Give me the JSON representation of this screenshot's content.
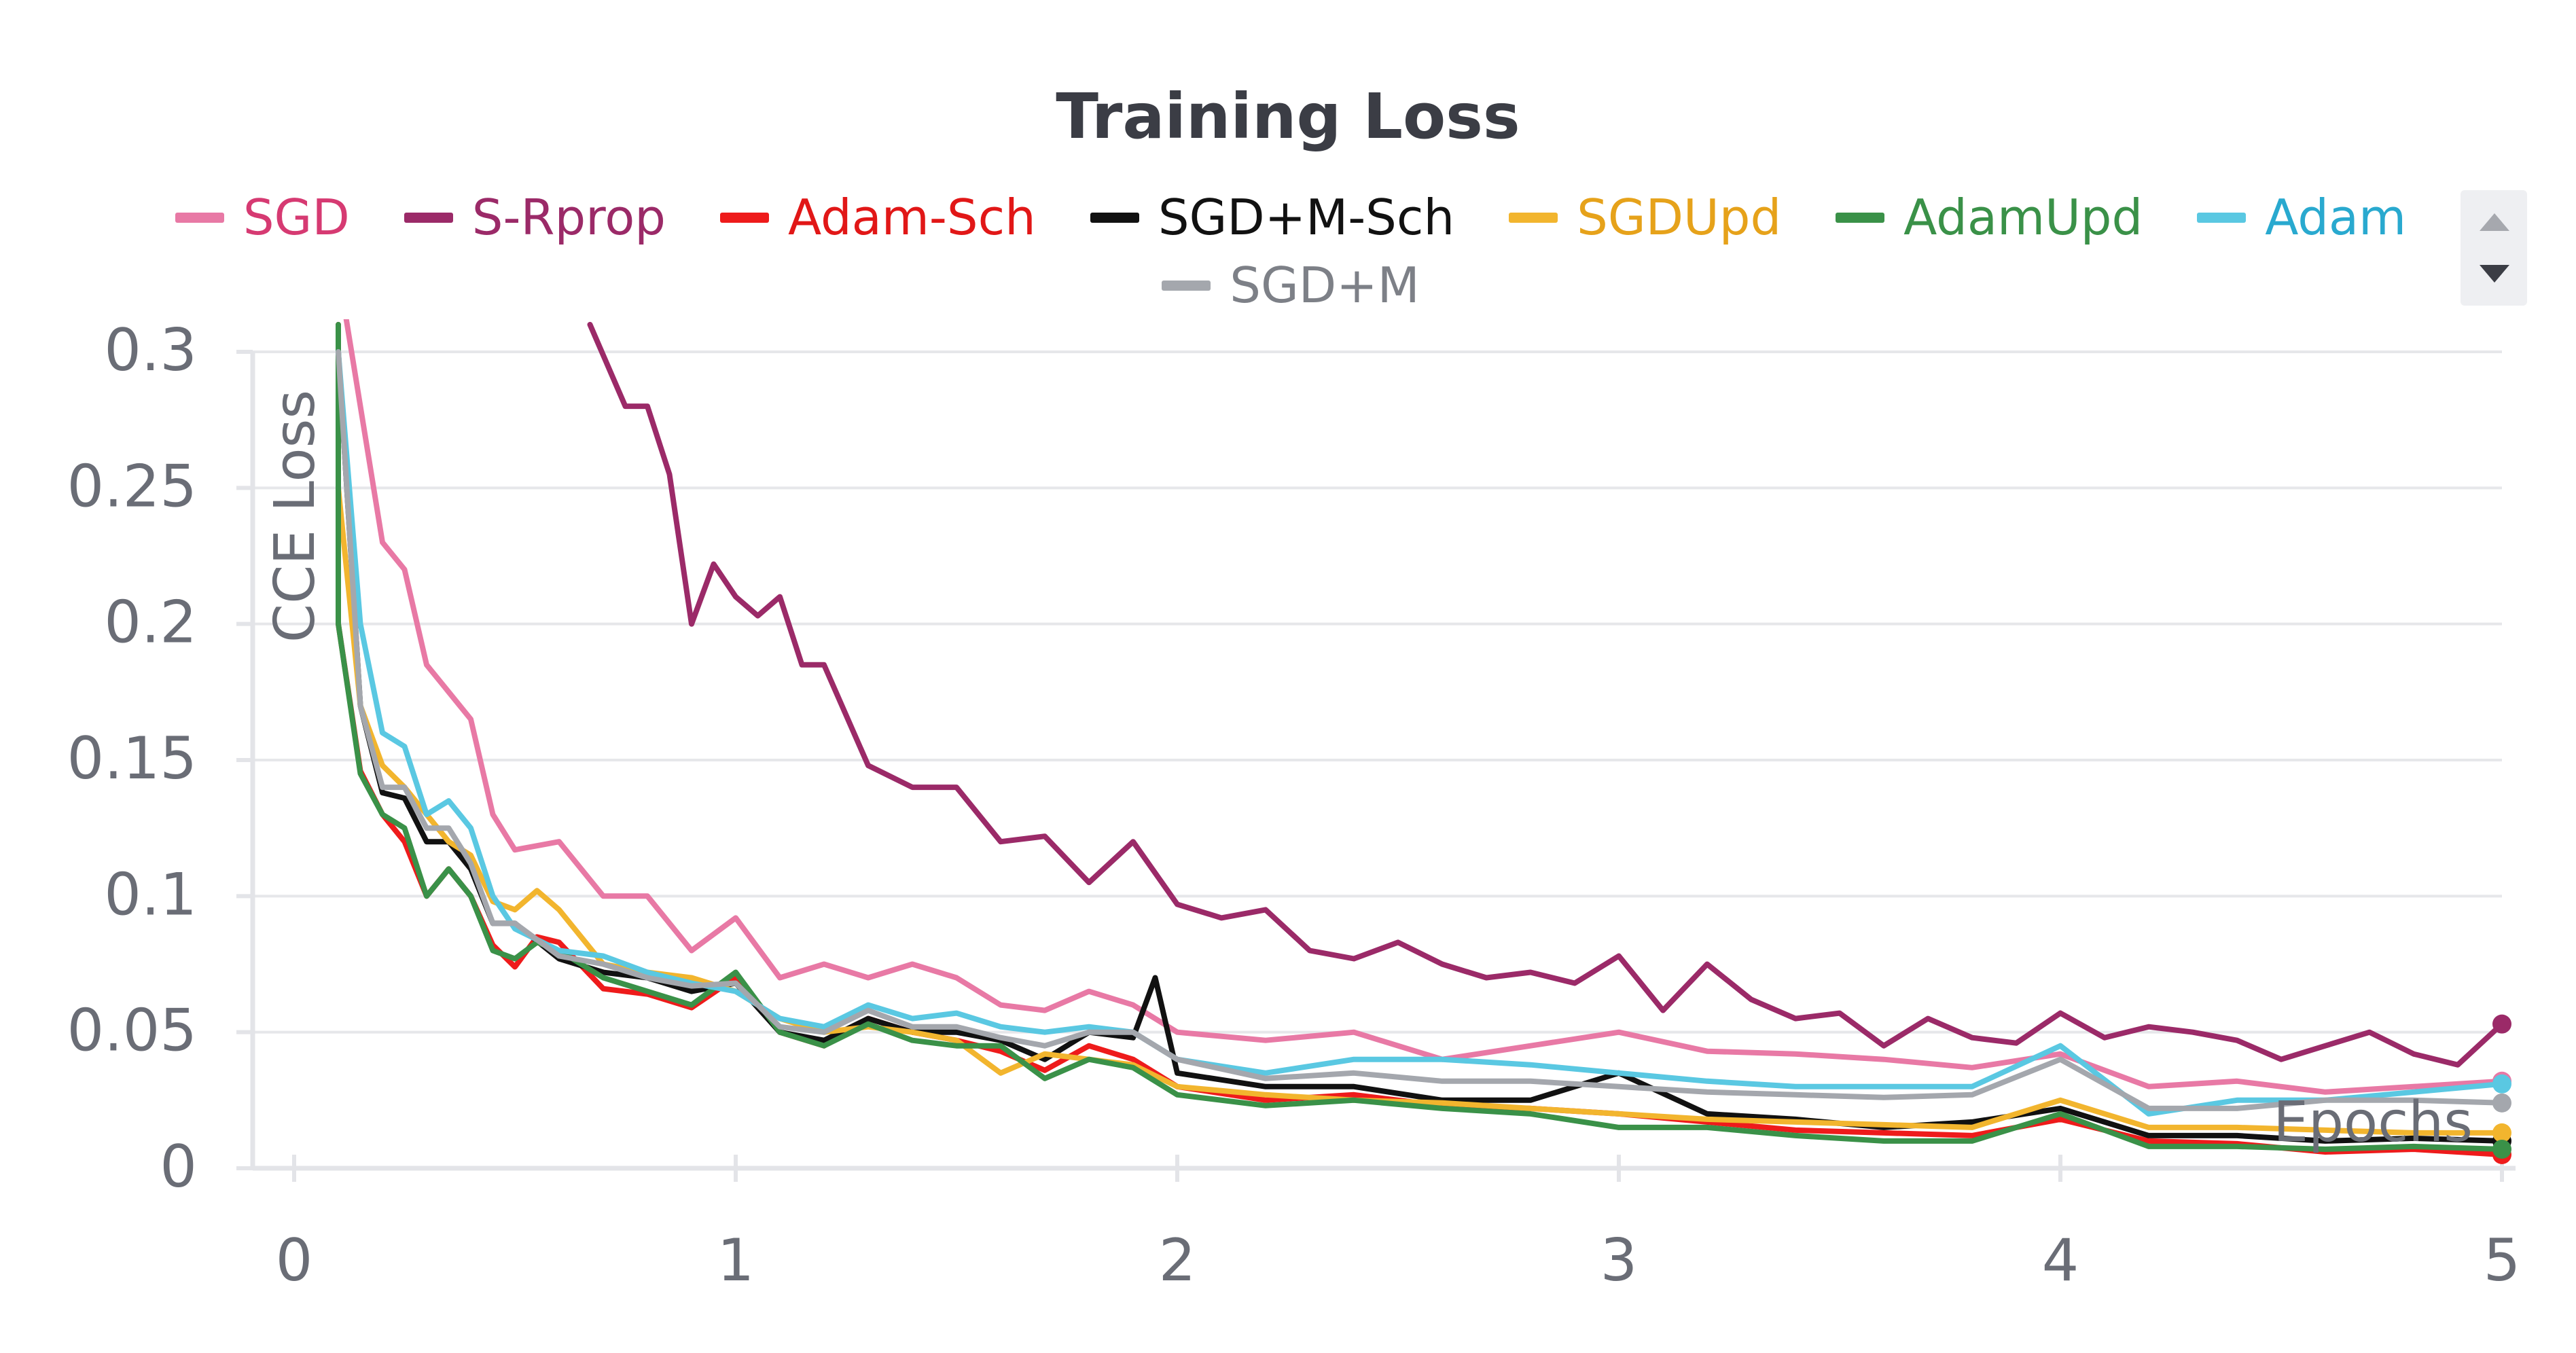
{
  "chart_data": {
    "type": "line",
    "title": "Training Loss",
    "xlabel": "Epochs",
    "ylabel": "CCE Loss",
    "xlim": [
      0,
      5
    ],
    "ylim": [
      0,
      0.3
    ],
    "xticks": [
      "0",
      "1",
      "2",
      "3",
      "4",
      "5"
    ],
    "yticks": [
      "0",
      "0.05",
      "0.1",
      "0.15",
      "0.2",
      "0.25",
      "0.3"
    ],
    "grid": true,
    "legend": "top-center",
    "series": [
      {
        "name": "SGD",
        "color": "#e879a5",
        "x": [
          0.1,
          0.2,
          0.25,
          0.3,
          0.35,
          0.4,
          0.45,
          0.5,
          0.6,
          0.7,
          0.8,
          0.9,
          1.0,
          1.1,
          1.2,
          1.3,
          1.4,
          1.5,
          1.6,
          1.7,
          1.8,
          1.9,
          2.0,
          2.2,
          2.4,
          2.6,
          2.8,
          3.0,
          3.2,
          3.4,
          3.6,
          3.8,
          4.0,
          4.2,
          4.4,
          4.6,
          4.8,
          5.0
        ],
        "y": [
          0.33,
          0.23,
          0.22,
          0.185,
          0.175,
          0.165,
          0.13,
          0.117,
          0.12,
          0.1,
          0.1,
          0.08,
          0.092,
          0.07,
          0.075,
          0.07,
          0.075,
          0.07,
          0.06,
          0.058,
          0.065,
          0.06,
          0.05,
          0.047,
          0.05,
          0.04,
          0.045,
          0.05,
          0.043,
          0.042,
          0.04,
          0.037,
          0.042,
          0.03,
          0.032,
          0.028,
          0.03,
          0.032
        ]
      },
      {
        "name": "S-Rprop",
        "color": "#9b2a68",
        "x": [
          0.67,
          0.75,
          0.8,
          0.85,
          0.9,
          0.95,
          1.0,
          1.05,
          1.1,
          1.15,
          1.2,
          1.3,
          1.4,
          1.5,
          1.6,
          1.7,
          1.8,
          1.9,
          2.0,
          2.1,
          2.2,
          2.3,
          2.4,
          2.5,
          2.6,
          2.7,
          2.8,
          2.9,
          3.0,
          3.1,
          3.2,
          3.3,
          3.4,
          3.5,
          3.6,
          3.7,
          3.8,
          3.9,
          4.0,
          4.1,
          4.2,
          4.3,
          4.4,
          4.5,
          4.6,
          4.7,
          4.8,
          4.9,
          5.0
        ],
        "y": [
          0.31,
          0.28,
          0.28,
          0.255,
          0.2,
          0.222,
          0.21,
          0.203,
          0.21,
          0.185,
          0.185,
          0.148,
          0.14,
          0.14,
          0.12,
          0.122,
          0.105,
          0.12,
          0.097,
          0.092,
          0.095,
          0.08,
          0.077,
          0.083,
          0.075,
          0.07,
          0.072,
          0.068,
          0.078,
          0.058,
          0.075,
          0.062,
          0.055,
          0.057,
          0.045,
          0.055,
          0.048,
          0.046,
          0.057,
          0.048,
          0.052,
          0.05,
          0.047,
          0.04,
          0.045,
          0.05,
          0.042,
          0.038,
          0.053
        ]
      },
      {
        "name": "Adam-Sch",
        "color": "#ee1b1b",
        "x": [
          0.1,
          0.1,
          0.15,
          0.2,
          0.25,
          0.3,
          0.35,
          0.4,
          0.45,
          0.5,
          0.55,
          0.6,
          0.7,
          0.8,
          0.9,
          1.0,
          1.1,
          1.2,
          1.3,
          1.4,
          1.5,
          1.6,
          1.7,
          1.8,
          1.9,
          2.0,
          2.2,
          2.4,
          2.6,
          2.8,
          3.0,
          3.2,
          3.4,
          3.6,
          3.8,
          4.0,
          4.2,
          4.4,
          4.6,
          4.8,
          5.0
        ],
        "y": [
          0.31,
          0.2,
          0.146,
          0.13,
          0.12,
          0.1,
          0.11,
          0.1,
          0.082,
          0.074,
          0.085,
          0.083,
          0.066,
          0.064,
          0.059,
          0.07,
          0.05,
          0.045,
          0.055,
          0.05,
          0.047,
          0.043,
          0.036,
          0.045,
          0.04,
          0.03,
          0.025,
          0.027,
          0.023,
          0.022,
          0.02,
          0.017,
          0.014,
          0.013,
          0.012,
          0.018,
          0.01,
          0.009,
          0.006,
          0.007,
          0.005
        ]
      },
      {
        "name": "SGD+M-Sch",
        "color": "#111111",
        "x": [
          0.1,
          0.15,
          0.2,
          0.25,
          0.3,
          0.35,
          0.4,
          0.45,
          0.5,
          0.6,
          0.7,
          0.8,
          0.9,
          1.0,
          1.1,
          1.2,
          1.3,
          1.4,
          1.5,
          1.6,
          1.7,
          1.8,
          1.9,
          1.95,
          2.0,
          2.2,
          2.4,
          2.6,
          2.8,
          3.0,
          3.2,
          3.4,
          3.6,
          3.8,
          4.0,
          4.2,
          4.4,
          4.6,
          4.8,
          5.0
        ],
        "y": [
          0.3,
          0.17,
          0.138,
          0.136,
          0.12,
          0.12,
          0.11,
          0.09,
          0.09,
          0.077,
          0.072,
          0.07,
          0.065,
          0.068,
          0.05,
          0.047,
          0.055,
          0.05,
          0.05,
          0.047,
          0.04,
          0.05,
          0.048,
          0.07,
          0.035,
          0.03,
          0.03,
          0.025,
          0.025,
          0.035,
          0.02,
          0.018,
          0.015,
          0.017,
          0.022,
          0.012,
          0.012,
          0.01,
          0.011,
          0.01
        ]
      },
      {
        "name": "SGDUpd",
        "color": "#f2b52e",
        "x": [
          0.1,
          0.15,
          0.2,
          0.25,
          0.3,
          0.35,
          0.4,
          0.45,
          0.5,
          0.55,
          0.6,
          0.7,
          0.8,
          0.9,
          1.0,
          1.1,
          1.2,
          1.3,
          1.4,
          1.5,
          1.6,
          1.7,
          1.8,
          1.9,
          2.0,
          2.2,
          2.4,
          2.6,
          2.8,
          3.0,
          3.2,
          3.4,
          3.6,
          3.8,
          4.0,
          4.2,
          4.4,
          4.6,
          4.8,
          5.0
        ],
        "y": [
          0.25,
          0.17,
          0.148,
          0.14,
          0.13,
          0.12,
          0.115,
          0.098,
          0.095,
          0.102,
          0.095,
          0.075,
          0.072,
          0.07,
          0.065,
          0.055,
          0.05,
          0.052,
          0.05,
          0.047,
          0.035,
          0.042,
          0.04,
          0.038,
          0.03,
          0.027,
          0.025,
          0.024,
          0.022,
          0.02,
          0.018,
          0.017,
          0.016,
          0.015,
          0.025,
          0.015,
          0.015,
          0.014,
          0.013,
          0.013
        ]
      },
      {
        "name": "AdamUpd",
        "color": "#3a9148",
        "x": [
          0.1,
          0.1,
          0.15,
          0.2,
          0.25,
          0.3,
          0.35,
          0.4,
          0.45,
          0.5,
          0.55,
          0.6,
          0.7,
          0.8,
          0.9,
          1.0,
          1.1,
          1.2,
          1.3,
          1.4,
          1.5,
          1.6,
          1.7,
          1.8,
          1.9,
          2.0,
          2.2,
          2.4,
          2.6,
          2.8,
          3.0,
          3.2,
          3.4,
          3.6,
          3.8,
          4.0,
          4.2,
          4.4,
          4.6,
          4.8,
          5.0
        ],
        "y": [
          0.31,
          0.2,
          0.145,
          0.13,
          0.125,
          0.1,
          0.11,
          0.1,
          0.08,
          0.077,
          0.083,
          0.08,
          0.07,
          0.065,
          0.06,
          0.072,
          0.05,
          0.045,
          0.053,
          0.047,
          0.045,
          0.045,
          0.033,
          0.04,
          0.037,
          0.027,
          0.023,
          0.025,
          0.022,
          0.02,
          0.015,
          0.015,
          0.012,
          0.01,
          0.01,
          0.02,
          0.008,
          0.008,
          0.007,
          0.008,
          0.007
        ]
      },
      {
        "name": "Adam",
        "color": "#5ac8e2",
        "x": [
          0.1,
          0.15,
          0.2,
          0.25,
          0.3,
          0.35,
          0.4,
          0.45,
          0.5,
          0.6,
          0.7,
          0.8,
          0.9,
          1.0,
          1.1,
          1.2,
          1.3,
          1.4,
          1.5,
          1.6,
          1.7,
          1.8,
          1.9,
          2.0,
          2.2,
          2.4,
          2.6,
          2.8,
          3.0,
          3.2,
          3.4,
          3.6,
          3.8,
          4.0,
          4.2,
          4.4,
          4.6,
          4.8,
          5.0
        ],
        "y": [
          0.3,
          0.2,
          0.16,
          0.155,
          0.13,
          0.135,
          0.125,
          0.1,
          0.088,
          0.08,
          0.078,
          0.072,
          0.068,
          0.065,
          0.055,
          0.052,
          0.06,
          0.055,
          0.057,
          0.052,
          0.05,
          0.052,
          0.05,
          0.04,
          0.035,
          0.04,
          0.04,
          0.038,
          0.035,
          0.032,
          0.03,
          0.03,
          0.03,
          0.045,
          0.02,
          0.025,
          0.025,
          0.028,
          0.031
        ]
      },
      {
        "name": "SGD+M",
        "color": "#a4a7ad",
        "x": [
          0.1,
          0.15,
          0.2,
          0.25,
          0.3,
          0.35,
          0.4,
          0.45,
          0.5,
          0.6,
          0.7,
          0.8,
          0.9,
          1.0,
          1.1,
          1.2,
          1.3,
          1.4,
          1.5,
          1.6,
          1.7,
          1.8,
          1.9,
          2.0,
          2.2,
          2.4,
          2.6,
          2.8,
          3.0,
          3.2,
          3.4,
          3.6,
          3.8,
          4.0,
          4.2,
          4.4,
          4.6,
          4.8,
          5.0
        ],
        "y": [
          0.3,
          0.17,
          0.14,
          0.14,
          0.125,
          0.125,
          0.112,
          0.09,
          0.09,
          0.078,
          0.075,
          0.07,
          0.067,
          0.068,
          0.052,
          0.05,
          0.058,
          0.052,
          0.052,
          0.048,
          0.045,
          0.05,
          0.05,
          0.04,
          0.033,
          0.035,
          0.032,
          0.032,
          0.03,
          0.028,
          0.027,
          0.026,
          0.027,
          0.04,
          0.022,
          0.022,
          0.025,
          0.025,
          0.024
        ]
      }
    ]
  },
  "legend_controls": {
    "up_icon": "caret-up-icon",
    "down_icon": "caret-down-icon"
  }
}
